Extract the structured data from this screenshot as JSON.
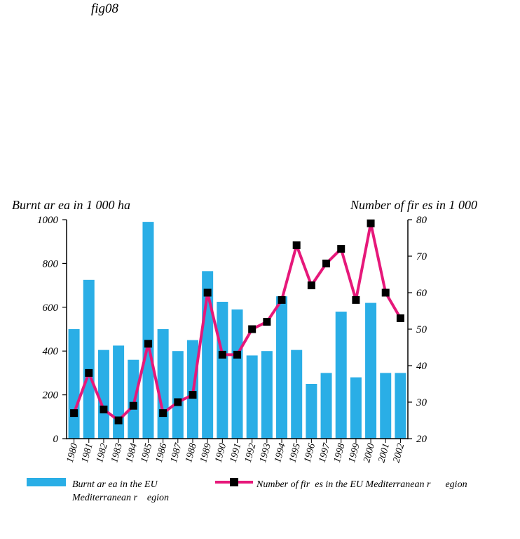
{
  "figure_label": "fig08",
  "colors": {
    "bar": "#2aaee6",
    "line": "#e6187a",
    "marker": "#000000"
  },
  "chart_data": {
    "type": "bar",
    "categories": [
      "1980",
      "1981",
      "1982",
      "1983",
      "1984",
      "1985",
      "1986",
      "1987",
      "1988",
      "1989",
      "1990",
      "1991",
      "1992",
      "1993",
      "1994",
      "1995",
      "1996",
      "1997",
      "1998",
      "1999",
      "2000",
      "2001",
      "2002"
    ],
    "ylabel_left": "Burnt ar ea in 1 000 ha",
    "ylabel_right": "Number of fir  es in 1 000",
    "ylim_left": [
      0,
      1000
    ],
    "ylim_right": [
      20,
      80
    ],
    "yticks_left": [
      "0",
      "200",
      "400",
      "600",
      "800",
      "1000"
    ],
    "yticks_right": [
      "20",
      "30",
      "40",
      "50",
      "60",
      "70",
      "80"
    ],
    "series": [
      {
        "name": "Burnt ar ea in the EU\nMediterranean r    egion",
        "type": "bar",
        "axis": "left",
        "values": [
          500,
          725,
          405,
          425,
          360,
          990,
          500,
          400,
          450,
          765,
          625,
          590,
          380,
          400,
          650,
          405,
          250,
          300,
          580,
          280,
          620,
          300,
          300
        ]
      },
      {
        "name": "Number of fir  es in the EU Mediterranean r      egion",
        "type": "line",
        "axis": "right",
        "values": [
          27,
          38,
          28,
          25,
          29,
          46,
          27,
          30,
          32,
          60,
          43,
          43,
          50,
          52,
          58,
          73,
          62,
          68,
          72,
          58,
          79,
          60,
          53
        ]
      }
    ],
    "legend_position": "bottom",
    "grid": false
  }
}
